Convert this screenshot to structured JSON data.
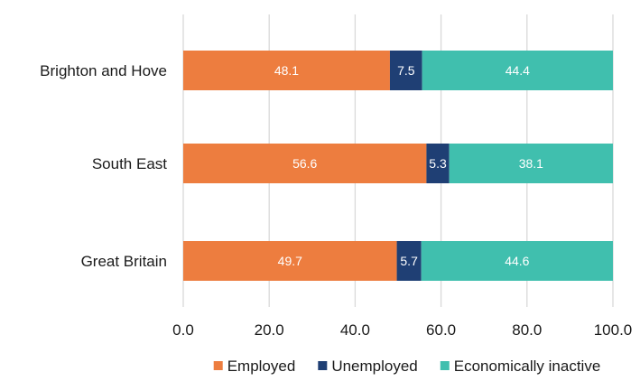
{
  "chart_data": {
    "type": "bar",
    "orientation": "horizontal",
    "stacked": true,
    "categories": [
      "Brighton and Hove",
      "South East",
      "Great Britain"
    ],
    "series": [
      {
        "name": "Employed",
        "values": [
          48.1,
          56.6,
          49.7
        ],
        "color": "#ed7d3f"
      },
      {
        "name": "Unemployed",
        "values": [
          7.5,
          5.3,
          5.7
        ],
        "color": "#1f3f74"
      },
      {
        "name": "Economically inactive",
        "values": [
          44.4,
          38.1,
          44.6
        ],
        "color": "#40bfae"
      }
    ],
    "xlim": [
      0,
      100
    ],
    "xticks": [
      0,
      20,
      40,
      60,
      80,
      100
    ],
    "xtick_labels": [
      "0.0",
      "20.0",
      "40.0",
      "60.0",
      "80.0",
      "100.0"
    ],
    "grid": "vertical",
    "legend": "bottom",
    "title": "",
    "xlabel": "",
    "ylabel": ""
  }
}
